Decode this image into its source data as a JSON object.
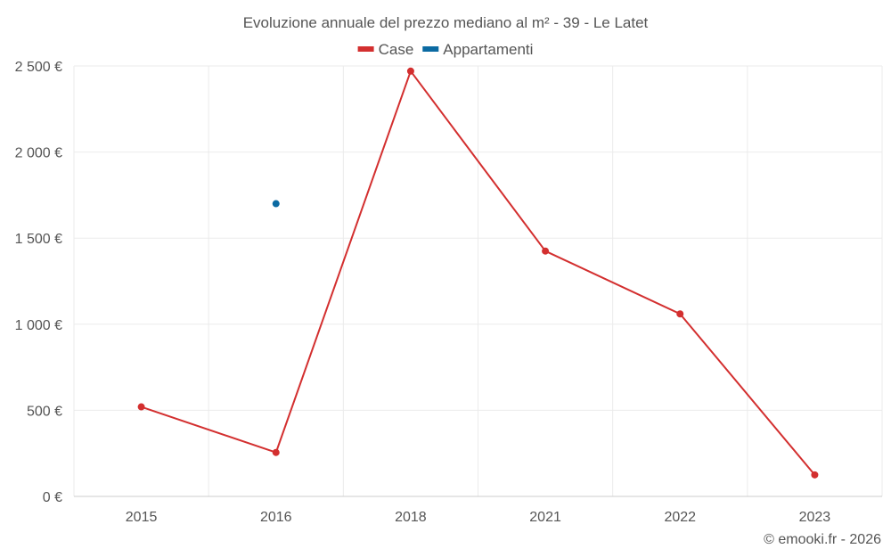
{
  "chart_data": {
    "type": "line",
    "title": "Evoluzione annuale del prezzo mediano al m² - 39 - Le Latet",
    "categories": [
      "2015",
      "2016",
      "2018",
      "2021",
      "2022",
      "2023"
    ],
    "series": [
      {
        "name": "Case",
        "color": "#d32f2f",
        "values": [
          520,
          255,
          2470,
          1425,
          1060,
          125
        ]
      },
      {
        "name": "Appartamenti",
        "color": "#0b6aa2",
        "values": [
          null,
          1700,
          null,
          null,
          null,
          null
        ]
      }
    ],
    "ylim": [
      0,
      2500
    ],
    "yticks": [
      0,
      500,
      1000,
      1500,
      2000,
      2500
    ],
    "ytick_labels": [
      "0 €",
      "500 €",
      "1 000 €",
      "1 500 €",
      "2 000 €",
      "2 500 €"
    ],
    "xlabel": "",
    "ylabel": "",
    "legend_position": "top-center",
    "grid": true
  },
  "credit": "© emooki.fr - 2026"
}
